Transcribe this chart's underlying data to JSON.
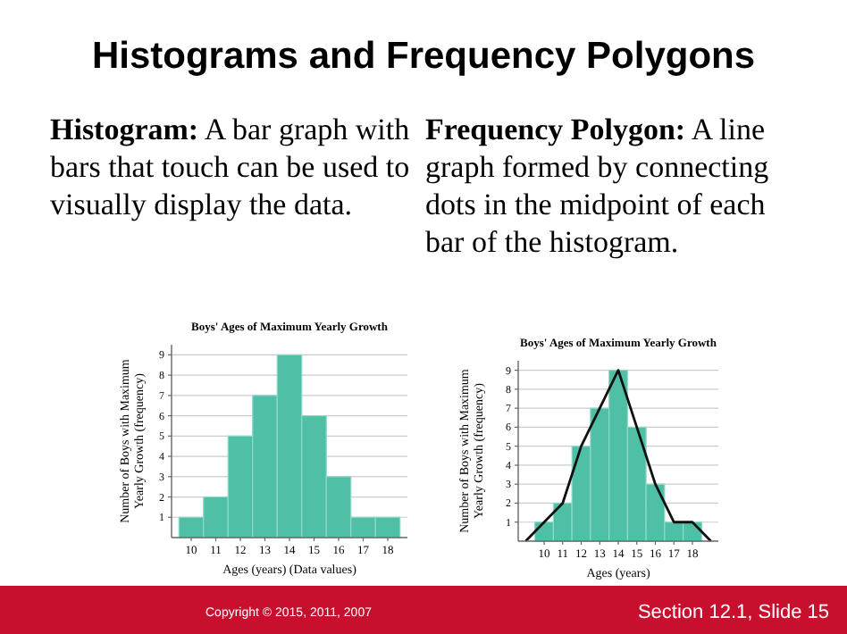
{
  "chart_data": [
    {
      "type": "other",
      "title": "Histograms and Frequency Polygons",
      "annotations": [
        "Histogram:  A bar graph with bars that touch can be used to visually display the data.",
        "Frequency Polygon:  A line graph formed by connecting dots in the midpoint of each bar of the histogram.",
        "Copyright © 2015, 2011, 2007",
        "Section 12.1,  Slide 15"
      ]
    },
    {
      "type": "histogram",
      "title": "Boys' Ages of Maximum Yearly Growth",
      "xlabel": "Ages (years) (Data values)",
      "ylabel": "Number of Boys with Maximum Yearly Growth (frequency)",
      "bins": [
        9.5,
        10.5,
        11.5,
        12.5,
        13.5,
        14.5,
        15.5,
        16.5,
        17.5,
        18.5
      ],
      "values": [
        1,
        2,
        5,
        7,
        9,
        6,
        3,
        1,
        1
      ],
      "color": "#4fbfa5",
      "xlim": [
        9.2,
        18.8
      ],
      "xticks": [
        10,
        11,
        12,
        13,
        14,
        15,
        16,
        17,
        18
      ],
      "ylim": [
        0,
        9.5
      ],
      "yticks": [
        1,
        2,
        3,
        4,
        5,
        6,
        7,
        8,
        9
      ],
      "grid": "y"
    },
    {
      "type": "histogram",
      "title": "Boys' Ages of Maximum Yearly Growth",
      "xlabel": "Ages (years)",
      "ylabel": "Number of Boys with Maximum Yearly Growth (frequency)",
      "bins": [
        9.5,
        10.5,
        11.5,
        12.5,
        13.5,
        14.5,
        15.5,
        16.5,
        17.5,
        18.5
      ],
      "values": [
        1,
        2,
        5,
        7,
        9,
        6,
        3,
        1,
        1
      ],
      "color": "#4fbfa5",
      "series": [
        {
          "type": "line",
          "color": "#111111",
          "x": [
            9,
            10,
            11,
            12,
            13,
            14,
            15,
            16,
            17,
            18,
            19
          ],
          "values": [
            0,
            1,
            2,
            5,
            7,
            9,
            6,
            3,
            1,
            1,
            0
          ]
        }
      ],
      "xlim": [
        8.6,
        19.4
      ],
      "xticks": [
        10,
        11,
        12,
        13,
        14,
        15,
        16,
        17,
        18
      ],
      "ylim": [
        0,
        9.5
      ],
      "yticks": [
        1,
        2,
        3,
        4,
        5,
        6,
        7,
        8,
        9
      ],
      "grid": "y",
      "marker": "none"
    }
  ]
}
